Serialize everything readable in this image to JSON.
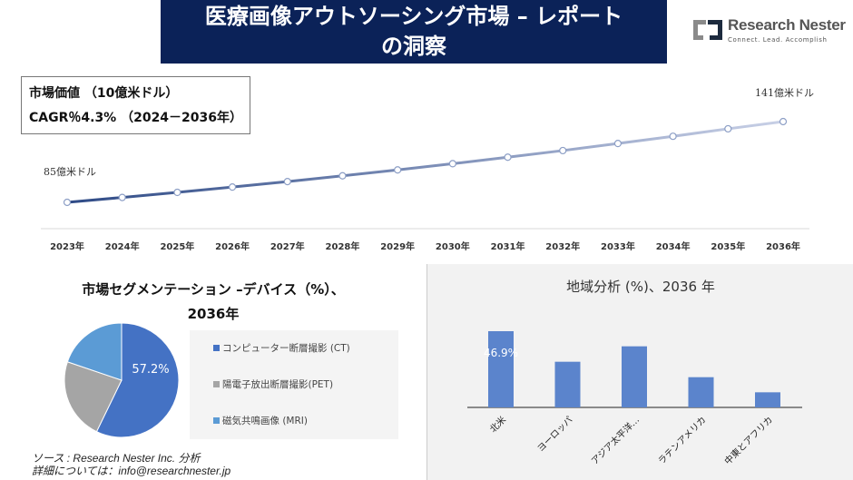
{
  "header": {
    "title_line1": "医療画像アウトソーシング市場 – レポート",
    "title_line2": "の洞察"
  },
  "logo": {
    "brand": "Research Nester",
    "tagline": "Connect. Lead. Accomplish"
  },
  "infobox": {
    "market_value": "市場価値 （10億米ドル）",
    "cagr": "CAGR％4.3% （2024－2036年）"
  },
  "chart_data": [
    {
      "type": "line",
      "start_label": "85億米ドル",
      "end_label": "141億米ドル",
      "categories": [
        "2023年",
        "2024年",
        "2025年",
        "2026年",
        "2027年",
        "2028年",
        "2029年",
        "2030年",
        "2031年",
        "2032年",
        "2033年",
        "2034年",
        "2035年",
        "2036年"
      ],
      "values": [
        85,
        88.4,
        91.9,
        95.6,
        99.4,
        103.4,
        107.5,
        111.8,
        116.3,
        120.9,
        125.8,
        130.8,
        136,
        141
      ],
      "colors": {
        "start": "#2e4a86",
        "end": "#c8d0e6"
      },
      "grid": false
    },
    {
      "type": "pie",
      "title": "市場セグメンテーション –デバイス（%）、2036年",
      "labels": [
        "コンピューター断層撮影 (CT)",
        "陽電子放出断層撮影(PET)",
        "磁気共鳴画像 (MRI)"
      ],
      "values": [
        57.2,
        23,
        19.8
      ],
      "data_label": "57.2%",
      "colors": [
        "#4472c4",
        "#a5a5a5",
        "#5b9bd5"
      ]
    },
    {
      "type": "bar",
      "title": "地域分析 (%)、2036 年",
      "categories": [
        "北米",
        "ヨーロッパ",
        "アジア太平洋…",
        "ラテンアメリカ",
        "中東とアフリカ"
      ],
      "values": [
        46.9,
        28.1,
        37.6,
        18.6,
        9.3
      ],
      "data_label": "46.9%",
      "color": "#5b84cc"
    }
  ],
  "source": {
    "line1": "ソース : Research Nester Inc. 分析",
    "line2": "詳細については：info@researchnester.jp"
  }
}
